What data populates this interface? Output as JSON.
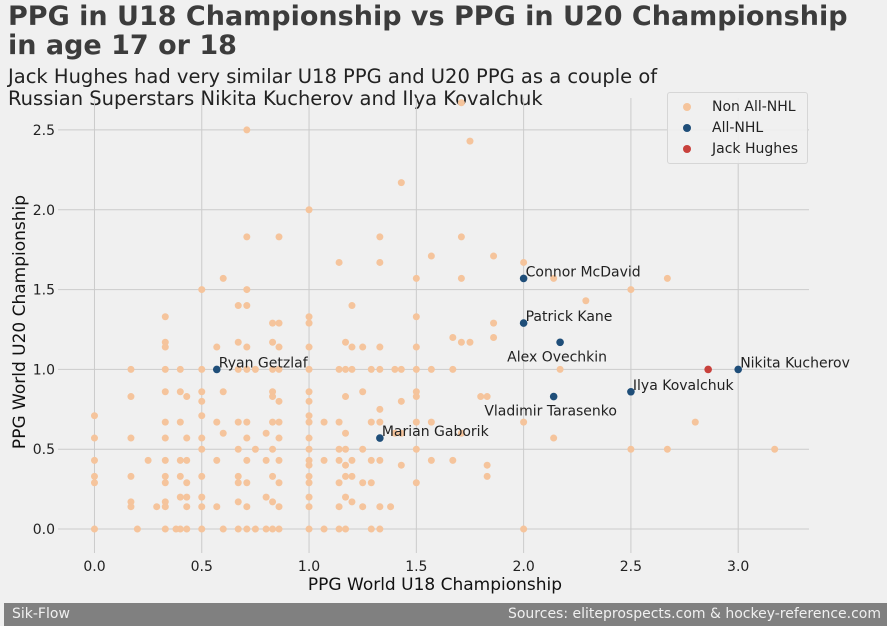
{
  "chart_data": {
    "type": "scatter",
    "title": "PPG in U18 Championship vs PPG in U20 Championship in age 17 or 18",
    "subtitle": "Jack Hughes had very similar U18 PPG and U20 PPG as a couple of Russian Superstars Nikita Kucherov and Ilya Kovalchuk",
    "xlabel": "PPG World U18 Championship",
    "ylabel": "PPG World U20 Championship",
    "xlim": [
      -0.17,
      3.33
    ],
    "ylim": [
      -0.15,
      2.7
    ],
    "xticks": [
      0.0,
      0.5,
      1.0,
      1.5,
      2.0,
      2.5,
      3.0
    ],
    "yticks": [
      0.0,
      0.5,
      1.0,
      1.5,
      2.0,
      2.5
    ],
    "xtick_labels": [
      "0.0",
      "0.5",
      "1.0",
      "1.5",
      "2.0",
      "2.5",
      "3.0"
    ],
    "ytick_labels": [
      "0.0",
      "0.5",
      "1.0",
      "1.5",
      "2.0",
      "2.5"
    ],
    "grid": true,
    "legend_position": "top-right",
    "series": [
      {
        "name": "Non All-NHL",
        "color": "#f5c49c",
        "points": [
          [
            0,
            0.71
          ],
          [
            0,
            0.57
          ],
          [
            0,
            0.43
          ],
          [
            0,
            0.33
          ],
          [
            0,
            0.29
          ],
          [
            0,
            0
          ],
          [
            0.17,
            1
          ],
          [
            0.17,
            0.83
          ],
          [
            0.17,
            0.57
          ],
          [
            0.17,
            0.33
          ],
          [
            0.17,
            0.17
          ],
          [
            0.17,
            0.14
          ],
          [
            0.2,
            0
          ],
          [
            0.25,
            0.43
          ],
          [
            0.29,
            0.14
          ],
          [
            0.33,
            1.33
          ],
          [
            0.33,
            1.17
          ],
          [
            0.33,
            1.14
          ],
          [
            0.33,
            1
          ],
          [
            0.33,
            0.86
          ],
          [
            0.33,
            0.67
          ],
          [
            0.33,
            0.57
          ],
          [
            0.33,
            0.43
          ],
          [
            0.33,
            0.33
          ],
          [
            0.33,
            0.29
          ],
          [
            0.33,
            0.17
          ],
          [
            0.33,
            0.14
          ],
          [
            0.33,
            0
          ],
          [
            0.38,
            0
          ],
          [
            0.4,
            1
          ],
          [
            0.4,
            0.86
          ],
          [
            0.4,
            0.67
          ],
          [
            0.4,
            0.43
          ],
          [
            0.4,
            0.33
          ],
          [
            0.4,
            0.2
          ],
          [
            0.4,
            0
          ],
          [
            0.43,
            0.83
          ],
          [
            0.43,
            0.57
          ],
          [
            0.43,
            0.43
          ],
          [
            0.43,
            0.29
          ],
          [
            0.43,
            0.2
          ],
          [
            0.43,
            0.14
          ],
          [
            0.43,
            0
          ],
          [
            0.5,
            1.5
          ],
          [
            0.5,
            1
          ],
          [
            0.5,
            0.86
          ],
          [
            0.5,
            0.8
          ],
          [
            0.5,
            0.71
          ],
          [
            0.5,
            0.57
          ],
          [
            0.5,
            0.5
          ],
          [
            0.5,
            0.33
          ],
          [
            0.5,
            0.2
          ],
          [
            0.5,
            0.14
          ],
          [
            0.5,
            0
          ],
          [
            0.57,
            1.14
          ],
          [
            0.57,
            0.67
          ],
          [
            0.57,
            0.43
          ],
          [
            0.57,
            0.14
          ],
          [
            0.6,
            1.57
          ],
          [
            0.6,
            0.86
          ],
          [
            0.6,
            0.6
          ],
          [
            0.6,
            0
          ],
          [
            0.67,
            1.4
          ],
          [
            0.67,
            1.17
          ],
          [
            0.67,
            1
          ],
          [
            0.67,
            0.67
          ],
          [
            0.67,
            0.5
          ],
          [
            0.67,
            0.33
          ],
          [
            0.67,
            0.29
          ],
          [
            0.67,
            0.17
          ],
          [
            0.67,
            0
          ],
          [
            0.71,
            2.5
          ],
          [
            0.71,
            1.83
          ],
          [
            0.71,
            1.5
          ],
          [
            0.71,
            1.4
          ],
          [
            0.71,
            1.14
          ],
          [
            0.71,
            1
          ],
          [
            0.71,
            0.67
          ],
          [
            0.71,
            0.57
          ],
          [
            0.71,
            0.43
          ],
          [
            0.71,
            0.29
          ],
          [
            0.71,
            0.14
          ],
          [
            0.71,
            0
          ],
          [
            0.75,
            1
          ],
          [
            0.75,
            0.5
          ],
          [
            0.75,
            0
          ],
          [
            0.8,
            0.6
          ],
          [
            0.8,
            0.43
          ],
          [
            0.8,
            0.2
          ],
          [
            0.8,
            0
          ],
          [
            0.83,
            1.29
          ],
          [
            0.83,
            1.17
          ],
          [
            0.83,
            1
          ],
          [
            0.83,
            0.86
          ],
          [
            0.83,
            0.83
          ],
          [
            0.83,
            0.67
          ],
          [
            0.83,
            0.5
          ],
          [
            0.83,
            0.33
          ],
          [
            0.83,
            0.17
          ],
          [
            0.83,
            0
          ],
          [
            0.86,
            1.83
          ],
          [
            0.86,
            1.29
          ],
          [
            0.86,
            1.14
          ],
          [
            0.86,
            1
          ],
          [
            0.86,
            0.8
          ],
          [
            0.86,
            0.67
          ],
          [
            0.86,
            0.57
          ],
          [
            0.86,
            0.43
          ],
          [
            0.86,
            0.29
          ],
          [
            0.86,
            0.14
          ],
          [
            0.86,
            0
          ],
          [
            1,
            2
          ],
          [
            1,
            1.33
          ],
          [
            1,
            1.29
          ],
          [
            1,
            1.14
          ],
          [
            1,
            1
          ],
          [
            1,
            0.86
          ],
          [
            1,
            0.8
          ],
          [
            1,
            0.71
          ],
          [
            1,
            0.67
          ],
          [
            1,
            0.57
          ],
          [
            1,
            0.5
          ],
          [
            1,
            0.43
          ],
          [
            1,
            0.4
          ],
          [
            1,
            0.33
          ],
          [
            1,
            0.29
          ],
          [
            1,
            0.2
          ],
          [
            1,
            0.14
          ],
          [
            1,
            0
          ],
          [
            1.07,
            0.67
          ],
          [
            1.07,
            0.43
          ],
          [
            1.07,
            0
          ],
          [
            1.14,
            1.67
          ],
          [
            1.14,
            1
          ],
          [
            1.14,
            0.67
          ],
          [
            1.14,
            0.5
          ],
          [
            1.14,
            0.43
          ],
          [
            1.14,
            0.29
          ],
          [
            1.14,
            0.14
          ],
          [
            1.14,
            0
          ],
          [
            1.17,
            1.17
          ],
          [
            1.17,
            1
          ],
          [
            1.17,
            0.83
          ],
          [
            1.17,
            0.6
          ],
          [
            1.17,
            0.5
          ],
          [
            1.17,
            0.4
          ],
          [
            1.17,
            0.33
          ],
          [
            1.17,
            0.2
          ],
          [
            1.17,
            0
          ],
          [
            1.2,
            1.4
          ],
          [
            1.2,
            1.14
          ],
          [
            1.2,
            1
          ],
          [
            1.2,
            0.43
          ],
          [
            1.2,
            0.33
          ],
          [
            1.2,
            0.17
          ],
          [
            1.25,
            1.14
          ],
          [
            1.25,
            0.86
          ],
          [
            1.25,
            0.5
          ],
          [
            1.25,
            0.29
          ],
          [
            1.25,
            0.14
          ],
          [
            1.29,
            1
          ],
          [
            1.29,
            0.67
          ],
          [
            1.29,
            0.43
          ],
          [
            1.29,
            0.29
          ],
          [
            1.29,
            0
          ],
          [
            1.33,
            1.83
          ],
          [
            1.33,
            1.67
          ],
          [
            1.33,
            1.14
          ],
          [
            1.33,
            1
          ],
          [
            1.33,
            0.75
          ],
          [
            1.33,
            0.67
          ],
          [
            1.33,
            0.43
          ],
          [
            1.33,
            0.14
          ],
          [
            1.33,
            0
          ],
          [
            1.38,
            0.14
          ],
          [
            1.4,
            1
          ],
          [
            1.4,
            0.6
          ],
          [
            1.43,
            2.17
          ],
          [
            1.43,
            1
          ],
          [
            1.43,
            0.8
          ],
          [
            1.43,
            0.6
          ],
          [
            1.43,
            0.4
          ],
          [
            1.5,
            1.57
          ],
          [
            1.5,
            1.33
          ],
          [
            1.5,
            1.14
          ],
          [
            1.5,
            1
          ],
          [
            1.5,
            0.86
          ],
          [
            1.5,
            0.83
          ],
          [
            1.5,
            0.67
          ],
          [
            1.5,
            0.5
          ],
          [
            1.5,
            0.29
          ],
          [
            1.57,
            1.71
          ],
          [
            1.57,
            1
          ],
          [
            1.57,
            0.67
          ],
          [
            1.57,
            0.43
          ],
          [
            1.67,
            1.2
          ],
          [
            1.67,
            1
          ],
          [
            1.67,
            0.43
          ],
          [
            1.71,
            2.67
          ],
          [
            1.71,
            1.83
          ],
          [
            1.71,
            1.57
          ],
          [
            1.71,
            1.17
          ],
          [
            1.71,
            0.6
          ],
          [
            1.75,
            2.43
          ],
          [
            1.75,
            1.17
          ],
          [
            1.8,
            0.83
          ],
          [
            1.83,
            0.83
          ],
          [
            1.83,
            0.4
          ],
          [
            1.83,
            0.33
          ],
          [
            1.86,
            1.71
          ],
          [
            1.86,
            1.29
          ],
          [
            1.86,
            1.2
          ],
          [
            2,
            1.67
          ],
          [
            2,
            0.67
          ],
          [
            2,
            0
          ],
          [
            2.14,
            1.57
          ],
          [
            2.14,
            0.57
          ],
          [
            2.17,
            1
          ],
          [
            2.29,
            1.43
          ],
          [
            2.5,
            1.5
          ],
          [
            2.5,
            0.5
          ],
          [
            2.67,
            1.57
          ],
          [
            2.67,
            0.5
          ],
          [
            2.8,
            0.67
          ],
          [
            3.17,
            0.5
          ]
        ]
      },
      {
        "name": "All-NHL",
        "color": "#1f4e79",
        "points": [
          [
            0.57,
            1.0
          ],
          [
            2.0,
            1.57
          ],
          [
            2.0,
            1.29
          ],
          [
            2.17,
            1.17
          ],
          [
            3.0,
            1.0
          ],
          [
            2.5,
            0.86
          ],
          [
            2.14,
            0.83
          ],
          [
            1.33,
            0.57
          ]
        ]
      },
      {
        "name": "Jack Hughes",
        "color": "#c8413c",
        "points": [
          [
            2.86,
            1.0
          ]
        ]
      }
    ],
    "annotations": [
      {
        "text": "Ryan Getzlaf",
        "x": 0.57,
        "y": 1.0,
        "anchor": "right-of"
      },
      {
        "text": "Connor McDavid",
        "x": 2.0,
        "y": 1.57,
        "anchor": "right-of"
      },
      {
        "text": "Patrick Kane",
        "x": 2.0,
        "y": 1.29,
        "anchor": "right-of"
      },
      {
        "text": "Alex Ovechkin",
        "x": 2.17,
        "y": 1.17,
        "anchor": "below-left"
      },
      {
        "text": "Nikita Kucherov",
        "x": 3.0,
        "y": 1.0,
        "anchor": "right-of"
      },
      {
        "text": "Ilya Kovalchuk",
        "x": 2.5,
        "y": 0.86,
        "anchor": "right-of"
      },
      {
        "text": "Vladimir Tarasenko",
        "x": 2.14,
        "y": 0.83,
        "anchor": "below-left"
      },
      {
        "text": "Marian Gaborik",
        "x": 1.33,
        "y": 0.57,
        "anchor": "right-of"
      }
    ]
  },
  "footer": {
    "left": "Sik-Flow",
    "right": "Sources: eliteprospects.com & hockey-reference.com"
  }
}
